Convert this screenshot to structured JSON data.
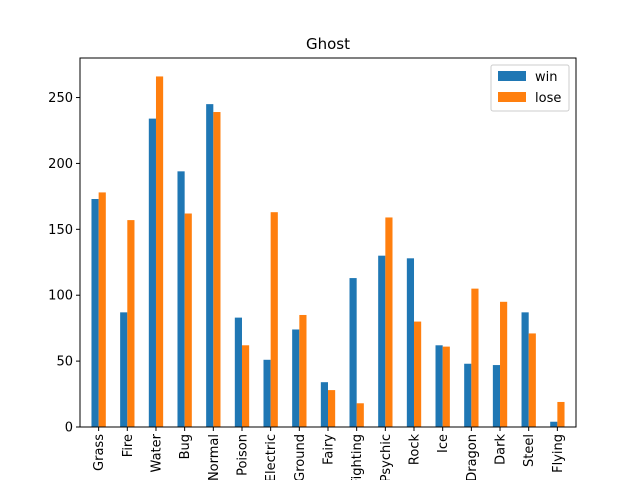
{
  "chart_data": {
    "type": "bar",
    "title": "Ghost",
    "xlabel": "",
    "ylabel": "",
    "categories": [
      "Grass",
      "Fire",
      "Water",
      "Bug",
      "Normal",
      "Poison",
      "Electric",
      "Ground",
      "Fairy",
      "Fighting",
      "Psychic",
      "Rock",
      "Ice",
      "Dragon",
      "Dark",
      "Steel",
      "Flying"
    ],
    "series": [
      {
        "name": "win",
        "color": "#1f77b4",
        "values": [
          173,
          87,
          234,
          194,
          245,
          83,
          51,
          74,
          34,
          113,
          130,
          128,
          62,
          48,
          47,
          87,
          4
        ]
      },
      {
        "name": "lose",
        "color": "#ff7f0e",
        "values": [
          178,
          157,
          266,
          162,
          239,
          62,
          163,
          85,
          28,
          18,
          159,
          80,
          61,
          105,
          95,
          71,
          19
        ]
      }
    ],
    "ylim": [
      0,
      280
    ],
    "yticks": [
      0,
      50,
      100,
      150,
      200,
      250
    ],
    "grid": false,
    "legend": "top-right"
  }
}
